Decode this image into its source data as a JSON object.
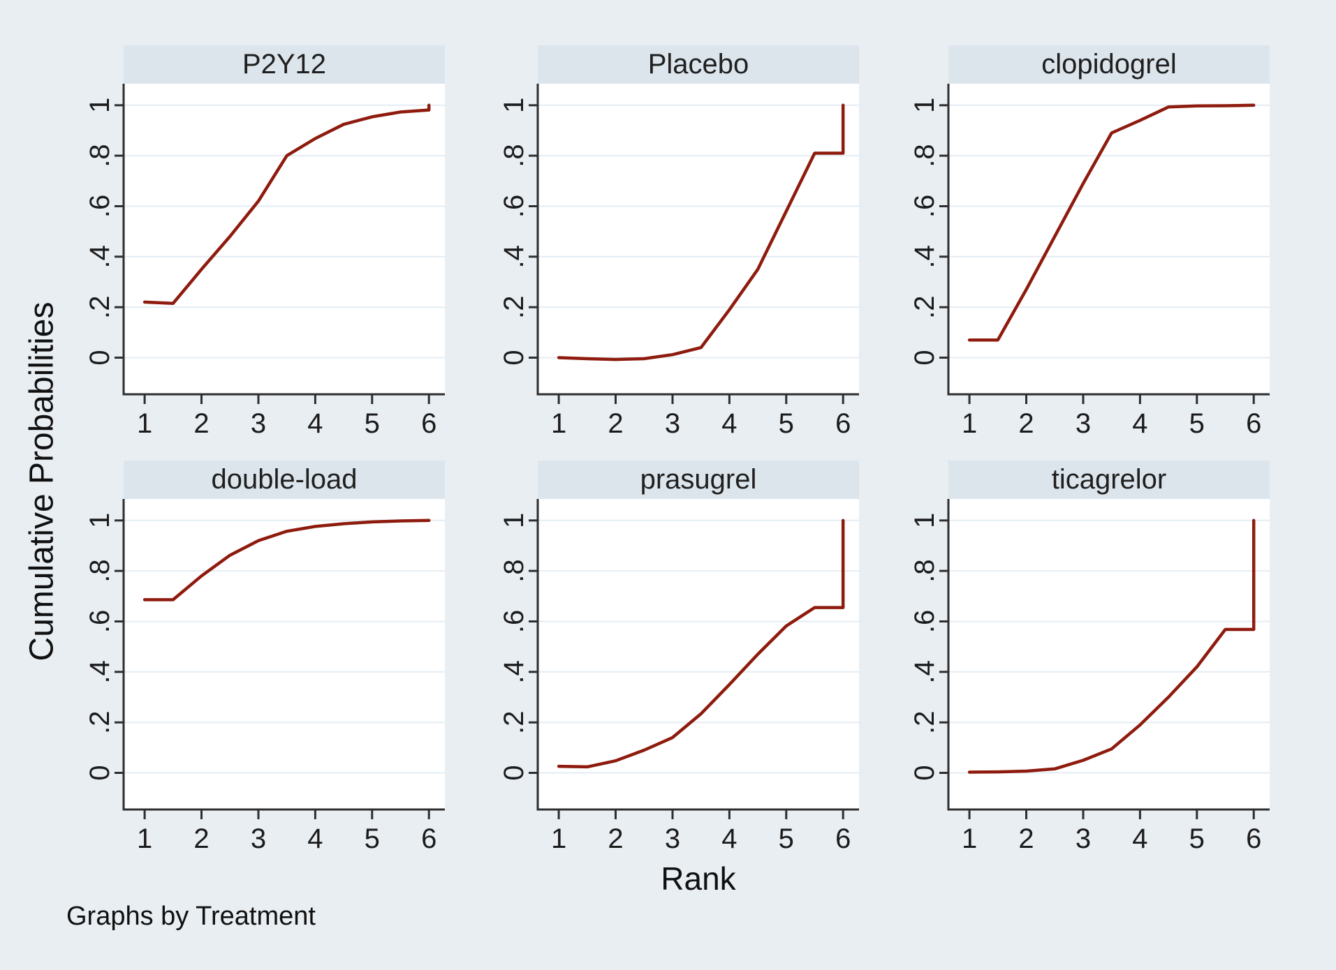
{
  "chart_data": {
    "type": "line",
    "layout": "faceted 2x3 small multiples (Stata graph by)",
    "title": "",
    "ylabel": "Cumulative Probabilities",
    "xlabel": "Rank",
    "note": "Graphs by Treatment",
    "xlim": [
      0.63,
      6.28
    ],
    "ylim": [
      -0.145,
      1.085
    ],
    "grid": "horizontal gridlines only",
    "legend_position": "none",
    "x_ticks": {
      "values": [
        1,
        2,
        3,
        4,
        5,
        6
      ],
      "labels": [
        "1",
        "2",
        "3",
        "4",
        "5",
        "6"
      ]
    },
    "y_ticks": {
      "values": [
        0,
        0.2,
        0.4,
        0.6,
        0.8,
        1
      ],
      "labels": [
        "0",
        ".2",
        ".4",
        ".6",
        ".8",
        "1"
      ]
    },
    "colors": {
      "line": "#8e1b0d",
      "page_bg": "#e9eef3",
      "panel_header_bg": "#dce5ec",
      "plot_bg": "#ffffff",
      "gridline": "#e3edf4",
      "axis": "#2e2e2e",
      "text": "#1b1b1b"
    },
    "panels": [
      {
        "title": "P2Y12",
        "points": [
          [
            1,
            0.22
          ],
          [
            1.5,
            0.215
          ],
          [
            2,
            0.35
          ],
          [
            2.5,
            0.48
          ],
          [
            3,
            0.62
          ],
          [
            3.5,
            0.8
          ],
          [
            4,
            0.868
          ],
          [
            4.5,
            0.924
          ],
          [
            5,
            0.954
          ],
          [
            5.5,
            0.973
          ],
          [
            6,
            0.981
          ],
          [
            6,
            1.0
          ]
        ]
      },
      {
        "title": "Placebo",
        "points": [
          [
            1,
            0.0
          ],
          [
            1.5,
            -0.004
          ],
          [
            2,
            -0.007
          ],
          [
            2.5,
            -0.004
          ],
          [
            3,
            0.012
          ],
          [
            3.5,
            0.04
          ],
          [
            4,
            0.19
          ],
          [
            4.5,
            0.35
          ],
          [
            5,
            0.58
          ],
          [
            5.5,
            0.81
          ],
          [
            6,
            0.81
          ],
          [
            6,
            1.0
          ]
        ]
      },
      {
        "title": "clopidogrel",
        "points": [
          [
            1,
            0.07
          ],
          [
            1.5,
            0.07
          ],
          [
            2,
            0.27
          ],
          [
            2.5,
            0.48
          ],
          [
            3,
            0.69
          ],
          [
            3.5,
            0.89
          ],
          [
            4,
            0.94
          ],
          [
            4.5,
            0.993
          ],
          [
            5,
            0.997
          ],
          [
            5.5,
            0.998
          ],
          [
            6,
            1.0
          ]
        ]
      },
      {
        "title": "double-load",
        "points": [
          [
            1,
            0.686
          ],
          [
            1.5,
            0.686
          ],
          [
            2,
            0.78
          ],
          [
            2.5,
            0.862
          ],
          [
            3,
            0.92
          ],
          [
            3.5,
            0.957
          ],
          [
            4,
            0.976
          ],
          [
            4.5,
            0.987
          ],
          [
            5,
            0.994
          ],
          [
            5.5,
            0.998
          ],
          [
            6,
            1.0
          ]
        ]
      },
      {
        "title": "prasugrel",
        "points": [
          [
            1,
            0.026
          ],
          [
            1.5,
            0.024
          ],
          [
            2,
            0.048
          ],
          [
            2.5,
            0.09
          ],
          [
            3,
            0.14
          ],
          [
            3.5,
            0.234
          ],
          [
            4,
            0.35
          ],
          [
            4.5,
            0.47
          ],
          [
            5,
            0.582
          ],
          [
            5.5,
            0.655
          ],
          [
            6,
            0.655
          ],
          [
            6,
            1.0
          ]
        ]
      },
      {
        "title": "ticagrelor",
        "points": [
          [
            1,
            0.003
          ],
          [
            1.5,
            0.004
          ],
          [
            2,
            0.007
          ],
          [
            2.5,
            0.016
          ],
          [
            3,
            0.05
          ],
          [
            3.5,
            0.095
          ],
          [
            4,
            0.19
          ],
          [
            4.5,
            0.3
          ],
          [
            5,
            0.42
          ],
          [
            5.5,
            0.568
          ],
          [
            6,
            0.568
          ],
          [
            6,
            1.0
          ]
        ]
      }
    ]
  }
}
